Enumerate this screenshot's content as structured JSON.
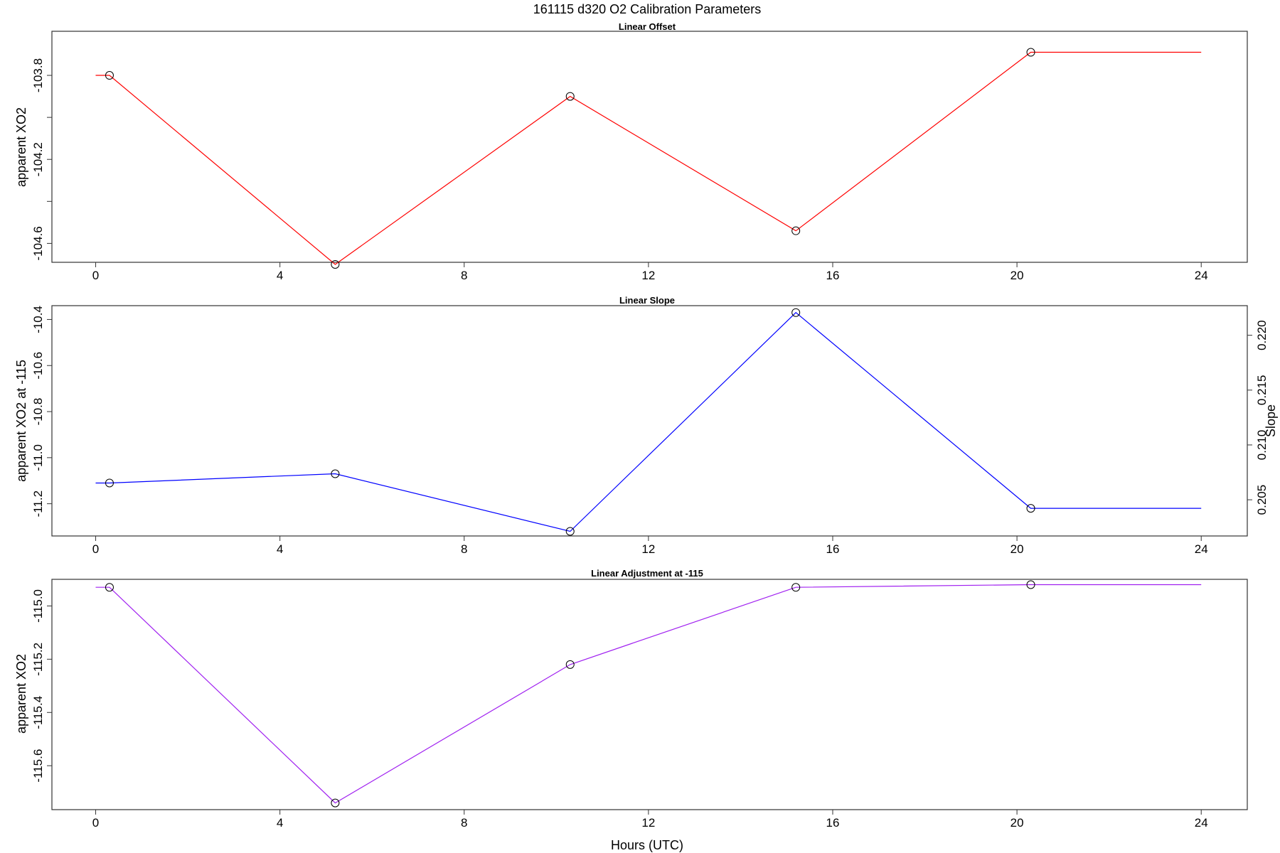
{
  "title": "161115   d320   O2 Calibration Parameters",
  "xlabel": "Hours (UTC)",
  "chart_data": [
    {
      "type": "line",
      "title": "Linear Offset",
      "ylabel": "apparent XO2",
      "color": "#ff0000",
      "x_ticks": [
        0,
        4,
        8,
        12,
        16,
        20,
        24
      ],
      "xlim": [
        -0.95,
        25.0
      ],
      "ylim": [
        -104.69,
        -103.59
      ],
      "y_ticks": [
        -103.8,
        -104.0,
        -104.2,
        -104.4,
        -104.6
      ],
      "y_tick_labels": [
        "-103.8",
        "",
        "-104.2",
        "",
        "-104.6"
      ],
      "points_x": [
        0.3,
        5.2,
        10.3,
        15.2,
        20.3
      ],
      "points_y": [
        -103.8,
        -104.7,
        -103.9,
        -104.54,
        -103.69
      ],
      "line_x": [
        0,
        0.3,
        5.2,
        10.3,
        15.2,
        20.3,
        24
      ],
      "line_y": [
        -103.8,
        -103.8,
        -104.7,
        -103.9,
        -104.54,
        -103.69,
        -103.69
      ]
    },
    {
      "type": "line",
      "title": "Linear Slope",
      "ylabel": "apparent XO2 at -115",
      "right_ylabel": "Slope",
      "color": "#0000ff",
      "x_ticks": [
        0,
        4,
        8,
        12,
        16,
        20,
        24
      ],
      "xlim": [
        -0.95,
        25.0
      ],
      "ylim": [
        -11.34,
        -10.34
      ],
      "y_ticks": [
        -10.4,
        -10.6,
        -10.8,
        -11.0,
        -11.2
      ],
      "y_tick_labels": [
        "-10.4",
        "-10.6",
        "-10.8",
        "-11.0",
        "-11.2"
      ],
      "right_ylim": [
        0.2017,
        0.2227
      ],
      "right_y_ticks": [
        0.205,
        0.21,
        0.215,
        0.22
      ],
      "right_y_tick_labels": [
        "0.205",
        "0.210",
        "0.215",
        "0.220"
      ],
      "points_x": [
        0.3,
        5.2,
        10.3,
        15.2,
        20.3
      ],
      "points_y": [
        -11.11,
        -11.07,
        -11.32,
        -10.37,
        -11.22
      ],
      "line_x": [
        0,
        0.3,
        5.2,
        10.3,
        15.2,
        20.3,
        24
      ],
      "line_y": [
        -11.11,
        -11.11,
        -11.07,
        -11.32,
        -10.37,
        -11.22,
        -11.22
      ]
    },
    {
      "type": "line",
      "title": "Linear Adjustment at -115",
      "ylabel": "apparent XO2",
      "color": "#a020f0",
      "x_ticks": [
        0,
        4,
        8,
        12,
        16,
        20,
        24
      ],
      "xlim": [
        -0.95,
        25.0
      ],
      "ylim": [
        -115.765,
        -114.9
      ],
      "y_ticks": [
        -115.0,
        -115.2,
        -115.4,
        -115.6
      ],
      "y_tick_labels": [
        "-115.0",
        "-115.2",
        "-115.4",
        "-115.6"
      ],
      "points_x": [
        0.3,
        5.2,
        10.3,
        15.2,
        20.3
      ],
      "points_y": [
        -114.93,
        -115.74,
        -115.22,
        -114.93,
        -114.92
      ],
      "line_x": [
        0,
        0.3,
        5.2,
        10.3,
        15.2,
        20.3,
        24
      ],
      "line_y": [
        -114.93,
        -114.93,
        -115.74,
        -115.22,
        -114.93,
        -114.92,
        -114.92
      ]
    }
  ]
}
